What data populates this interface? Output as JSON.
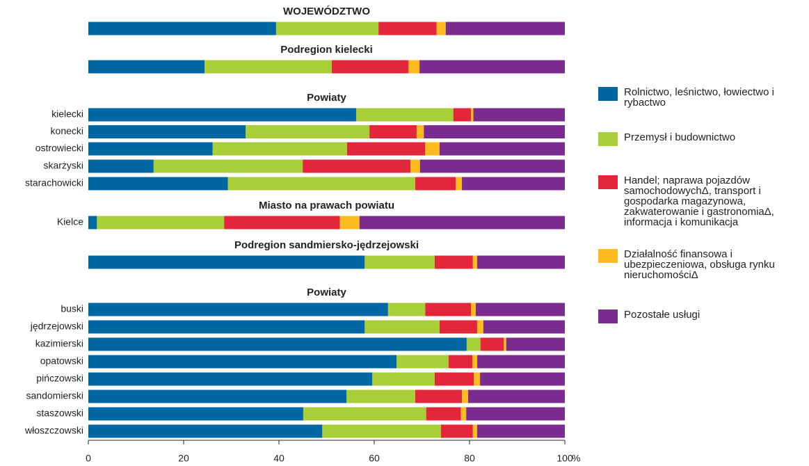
{
  "chart_data": {
    "type": "stacked-bar-horizontal",
    "categories": [
      null,
      null,
      "kielecki",
      "konecki",
      "ostrowiecki",
      "skarżyski",
      "starachowicki",
      "Kielce",
      null,
      "buski",
      "jędrzejowski",
      "kazimierski",
      "opatowski",
      "pińczowski",
      "sandomierski",
      "staszowski",
      "włoszczowski"
    ],
    "group_titles": [
      "WOJEWÓDZTWO",
      "Podregion kielecki",
      "Powiaty",
      null,
      null,
      null,
      null,
      "Miasto na prawach powiatu",
      "Podregion sandmiersko-jędrzejowski",
      "Powiaty",
      null,
      null,
      null,
      null,
      null,
      null,
      null
    ],
    "series": [
      {
        "name": "Rolnictwo, leśnictwo, łowiectwo i rybactwo",
        "color": "#0067a5",
        "values": [
          39.4,
          24.4,
          56.2,
          33.0,
          26.1,
          13.7,
          29.3,
          1.8,
          58.0,
          62.9,
          58.0,
          79.4,
          64.7,
          59.6,
          54.2,
          45.1,
          49.1
        ]
      },
      {
        "name": "Przemysł i budownictwo",
        "color": "#a8cf38",
        "values": [
          21.5,
          26.7,
          20.4,
          26.0,
          28.2,
          31.3,
          39.3,
          26.7,
          14.7,
          7.8,
          15.7,
          2.9,
          10.9,
          13.1,
          14.4,
          25.8,
          24.9
        ]
      },
      {
        "name": "Handel; naprawa pojazdów samochodowychΔ, transport i gospodarka magazynowa, zakwaterowanie i gastronomiaΔ, informacja i komunikacja",
        "color": "#e3263a",
        "values": [
          12.2,
          16.1,
          3.7,
          9.9,
          16.4,
          22.6,
          8.5,
          24.3,
          8.0,
          9.6,
          7.9,
          4.9,
          5.0,
          8.2,
          9.8,
          7.3,
          6.7
        ]
      },
      {
        "name": "Działalność finansowa i ubezpieczeniowa, obsługa rynku nieruchomościΔ",
        "color": "#fdbb1e",
        "values": [
          1.9,
          2.3,
          0.5,
          1.5,
          3.0,
          2.0,
          1.3,
          4.1,
          0.9,
          1.0,
          1.3,
          0.5,
          1.0,
          1.3,
          1.3,
          1.1,
          0.9
        ]
      },
      {
        "name": "Pozostałe usługi",
        "color": "#7a2d8f",
        "values": [
          25.0,
          30.5,
          19.2,
          29.6,
          26.3,
          30.4,
          21.6,
          43.1,
          18.4,
          18.7,
          17.1,
          12.3,
          18.4,
          17.8,
          20.3,
          20.7,
          18.4
        ]
      }
    ],
    "xlim": [
      0,
      100
    ],
    "xticks": [
      0,
      20,
      40,
      60,
      80,
      100
    ],
    "x_axis_label": "%"
  }
}
